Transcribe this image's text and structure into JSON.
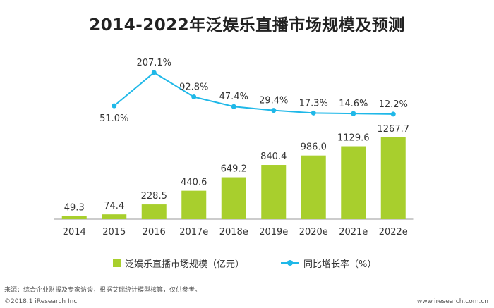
{
  "title": "2014-2022年泛娱乐直播市场规模及预测",
  "colors": {
    "bar": "#a8cf2d",
    "line": "#1fb8e8",
    "axis": "#999999"
  },
  "chart_data": {
    "type": "bar",
    "categories": [
      "2014",
      "2015",
      "2016",
      "2017e",
      "2018e",
      "2019e",
      "2020e",
      "2021e",
      "2022e"
    ],
    "series": [
      {
        "name": "泛娱乐直播市场规模（亿元）",
        "type": "bar",
        "values": [
          49.3,
          74.4,
          228.5,
          440.6,
          649.2,
          840.4,
          986.0,
          1129.6,
          1267.7
        ],
        "labels": [
          "49.3",
          "74.4",
          "228.5",
          "440.6",
          "649.2",
          "840.4",
          "986.0",
          "1129.6",
          "1267.7"
        ]
      },
      {
        "name": "同比增长率（%）",
        "type": "line",
        "values": [
          null,
          51.0,
          207.1,
          92.8,
          47.4,
          29.4,
          17.3,
          14.6,
          12.2
        ],
        "labels": [
          "",
          "51.0%",
          "207.1%",
          "92.8%",
          "47.4%",
          "29.4%",
          "17.3%",
          "14.6%",
          "12.2%"
        ]
      }
    ],
    "legend_position": "bottom",
    "grid": false
  },
  "footer": {
    "source": "来源：综合企业财报及专家访谈，根据艾瑞统计模型核算，仅供参考。",
    "copyright": "©2018.1 iResearch Inc",
    "website": "www.iresearch.com.cn"
  }
}
